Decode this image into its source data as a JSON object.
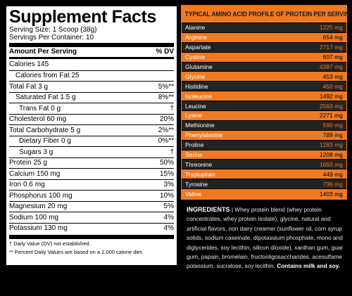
{
  "facts": {
    "title": "Supplement Facts",
    "serving_size": "Serving Size: 1 Scoop (38g)",
    "servings_per_container": "Servings Per Container: 10",
    "header_left": "Amount Per Serving",
    "header_right": "% DV",
    "rows": [
      {
        "label": "Calories  145",
        "dv": ""
      },
      {
        "label": "Calories from Fat  25",
        "dv": ""
      },
      {
        "label": "Total Fat  3 g",
        "dv": "5%**"
      },
      {
        "label": "Saturated Fat 1.5 g",
        "dv": "8%**"
      },
      {
        "label": "Trans Fat  0 g",
        "dv": "†"
      },
      {
        "label": "Cholesterol  60 mg",
        "dv": "20%"
      },
      {
        "label": "Total Carbohydrate  5 g",
        "dv": "2%**"
      },
      {
        "label": "Dietary Fiber 0 g",
        "dv": "0%**"
      },
      {
        "label": "Sugars  3 g",
        "dv": "†"
      },
      {
        "label": "Protein  25 g",
        "dv": "50%"
      },
      {
        "label": "Calcium  150 mg",
        "dv": "15%"
      },
      {
        "label": "Iron  0.6 mg",
        "dv": "3%"
      },
      {
        "label": "Phosphorus  100 mg",
        "dv": "10%"
      },
      {
        "label": "Magnesium  20 mg",
        "dv": "5%"
      },
      {
        "label": "Sodium  100 mg",
        "dv": "4%"
      },
      {
        "label": "Potassium  130 mg",
        "dv": "4%"
      }
    ],
    "footnote_1": "† Daily Value (DV) not established.",
    "footnote_2": "** Percent Daily Values are based on a 2,000 calorie diet."
  },
  "amino": {
    "title": "TYPICAL AMINO ACID PROFILE OF PROTEIN PER SERVING",
    "rows": [
      {
        "name": "Alanine",
        "value": "1225 mg"
      },
      {
        "name": "Arginine",
        "value": "654 mg"
      },
      {
        "name": "Aspartate",
        "value": "2717 mg"
      },
      {
        "name": "Cystine",
        "value": "607 mg"
      },
      {
        "name": "Glutamine",
        "value": "4387 mg"
      },
      {
        "name": "Glycine",
        "value": "453 mg"
      },
      {
        "name": "Histidine",
        "value": "450 mg"
      },
      {
        "name": "Isoleucine",
        "value": "1492 mg"
      },
      {
        "name": "Leucine",
        "value": "2593 mg"
      },
      {
        "name": "Lysine",
        "value": "2271 mg"
      },
      {
        "name": "Methionine",
        "value": "590 mg"
      },
      {
        "name": "Phenylalanine",
        "value": "789 mg"
      },
      {
        "name": "Proline",
        "value": "1283 mg"
      },
      {
        "name": "Serine",
        "value": "1208 mg"
      },
      {
        "name": "Threonine",
        "value": "1693 mg"
      },
      {
        "name": "Tryptophan",
        "value": "449 mg"
      },
      {
        "name": "Tyrosine",
        "value": "736 mg"
      },
      {
        "name": "Valine",
        "value": "1403 mg"
      }
    ]
  },
  "ingredients": {
    "title": "INGREDIENTS",
    "separator": "|",
    "text": "Whey protein blend (whey protein concentrates, whey protein isolate), glycine, natural and artificial flavors, non dairy creamer (sunflower oil, corn syrup solids, sodium caseinate, dipotassium phosphate, mono and diglycerides, soy lecithin, silicon dioxide), xanthan gum, guar gum, papain, bromelain, fructooligosaccharides, acesulfame potassium, sucralose, soy lecithin.",
    "allergen": "Contains milk and soy."
  },
  "colors": {
    "accent_orange": "#f07a22",
    "dark_row": "#232323",
    "background": "#000000"
  }
}
